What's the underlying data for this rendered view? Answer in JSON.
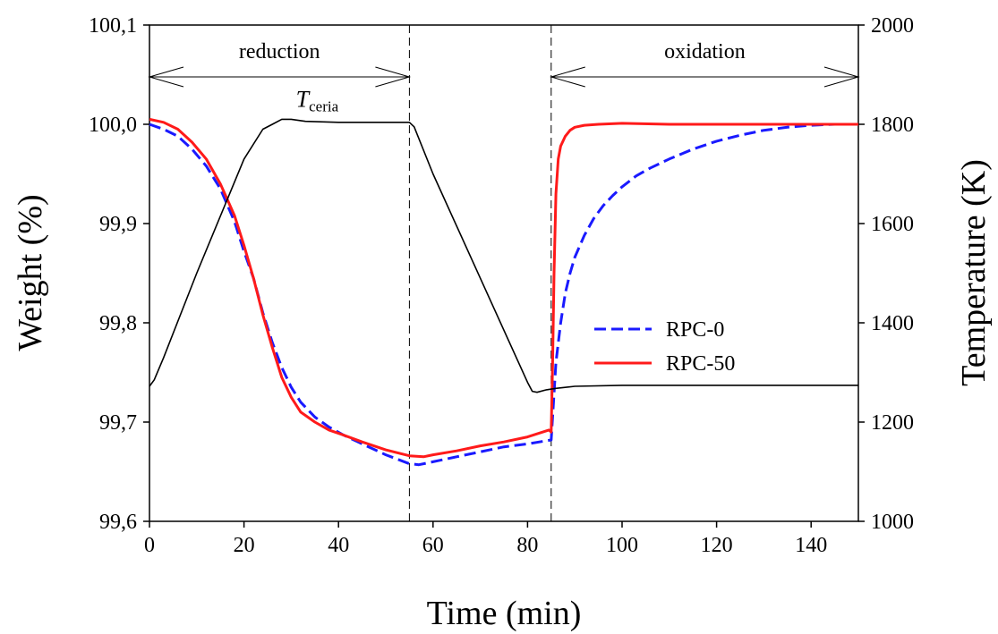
{
  "chart_data": {
    "type": "line",
    "xlabel": "Time (min)",
    "ylabel": "Weight (%)",
    "y2label": "Temperature (K)",
    "xlim": [
      0,
      150
    ],
    "ylim": [
      99.6,
      100.1
    ],
    "y2lim": [
      1000,
      2000
    ],
    "xticks": [
      "0",
      "20",
      "40",
      "60",
      "80",
      "100",
      "120",
      "140"
    ],
    "yticks": [
      "99,6",
      "99,7",
      "99,8",
      "99,9",
      "100,0",
      "100,1"
    ],
    "y2ticks": [
      "1000",
      "1200",
      "1400",
      "1600",
      "1800",
      "2000"
    ],
    "grid": false,
    "legend_position": "center-right",
    "series": [
      {
        "name": "RPC-0",
        "axis": "left",
        "color": "#1a1aff",
        "style": "dashed",
        "x": [
          0,
          3,
          6,
          9,
          12,
          15,
          18,
          20,
          22,
          24,
          26,
          28,
          30,
          32,
          35,
          38,
          41,
          45,
          50,
          55,
          57,
          60,
          65,
          70,
          75,
          80,
          85,
          85.5,
          86,
          87,
          88,
          89,
          90,
          92,
          94,
          96,
          98,
          100,
          103,
          106,
          110,
          115,
          120,
          125,
          130,
          135,
          140,
          145
        ],
        "values": [
          100.0,
          99.995,
          99.988,
          99.975,
          99.958,
          99.935,
          99.902,
          99.872,
          99.845,
          99.81,
          99.78,
          99.755,
          99.735,
          99.72,
          99.705,
          99.695,
          99.687,
          99.678,
          99.667,
          99.658,
          99.657,
          99.66,
          99.665,
          99.67,
          99.675,
          99.678,
          99.682,
          99.72,
          99.76,
          99.8,
          99.83,
          99.85,
          99.866,
          99.888,
          99.905,
          99.918,
          99.928,
          99.937,
          99.948,
          99.956,
          99.965,
          99.975,
          99.983,
          99.989,
          99.994,
          99.997,
          99.999,
          100.0
        ]
      },
      {
        "name": "RPC-50",
        "axis": "left",
        "color": "#ff1a1a",
        "style": "solid",
        "x": [
          0,
          3,
          6,
          9,
          12,
          15,
          18,
          20,
          22,
          24,
          26,
          28,
          30,
          32,
          35,
          38,
          41,
          45,
          50,
          55,
          58,
          60,
          65,
          70,
          75,
          80,
          84.5,
          85,
          85.3,
          85.6,
          86,
          86.5,
          87,
          88,
          89,
          90,
          92,
          95,
          100,
          110,
          120,
          130,
          140,
          145,
          150
        ],
        "values": [
          100.005,
          100.002,
          99.995,
          99.982,
          99.965,
          99.94,
          99.908,
          99.878,
          99.845,
          99.808,
          99.775,
          99.745,
          99.725,
          99.71,
          99.7,
          99.692,
          99.687,
          99.68,
          99.672,
          99.666,
          99.665,
          99.667,
          99.671,
          99.676,
          99.68,
          99.685,
          99.692,
          99.69,
          99.76,
          99.85,
          99.93,
          99.965,
          99.978,
          99.988,
          99.994,
          99.997,
          99.999,
          100.0,
          100.001,
          100.0,
          100.0,
          100.0,
          100.0,
          100.0,
          100.0
        ]
      },
      {
        "name": "T_ceria",
        "axis": "right",
        "color": "#000000",
        "style": "solid",
        "x": [
          0,
          1,
          3,
          10,
          20,
          24,
          26,
          28,
          30,
          33,
          40,
          50,
          55,
          56,
          60,
          70,
          80,
          81,
          82,
          84,
          86,
          90,
          100,
          120,
          140,
          150
        ],
        "values": [
          1272,
          1285,
          1330,
          1500,
          1730,
          1790,
          1800,
          1810,
          1810,
          1806,
          1804,
          1804,
          1804,
          1795,
          1700,
          1490,
          1280,
          1262,
          1260,
          1265,
          1268,
          1272,
          1274,
          1274,
          1274,
          1274
        ]
      }
    ],
    "annotations": {
      "reduction_label": "reduction",
      "oxidation_label": "oxidation",
      "reduction_range": [
        0,
        55
      ],
      "oxidation_range": [
        85,
        150
      ],
      "vlines": [
        55,
        85
      ],
      "temp_label_main": "T",
      "temp_label_sub": "ceria",
      "temp_label_at": [
        31,
        1835
      ]
    }
  }
}
